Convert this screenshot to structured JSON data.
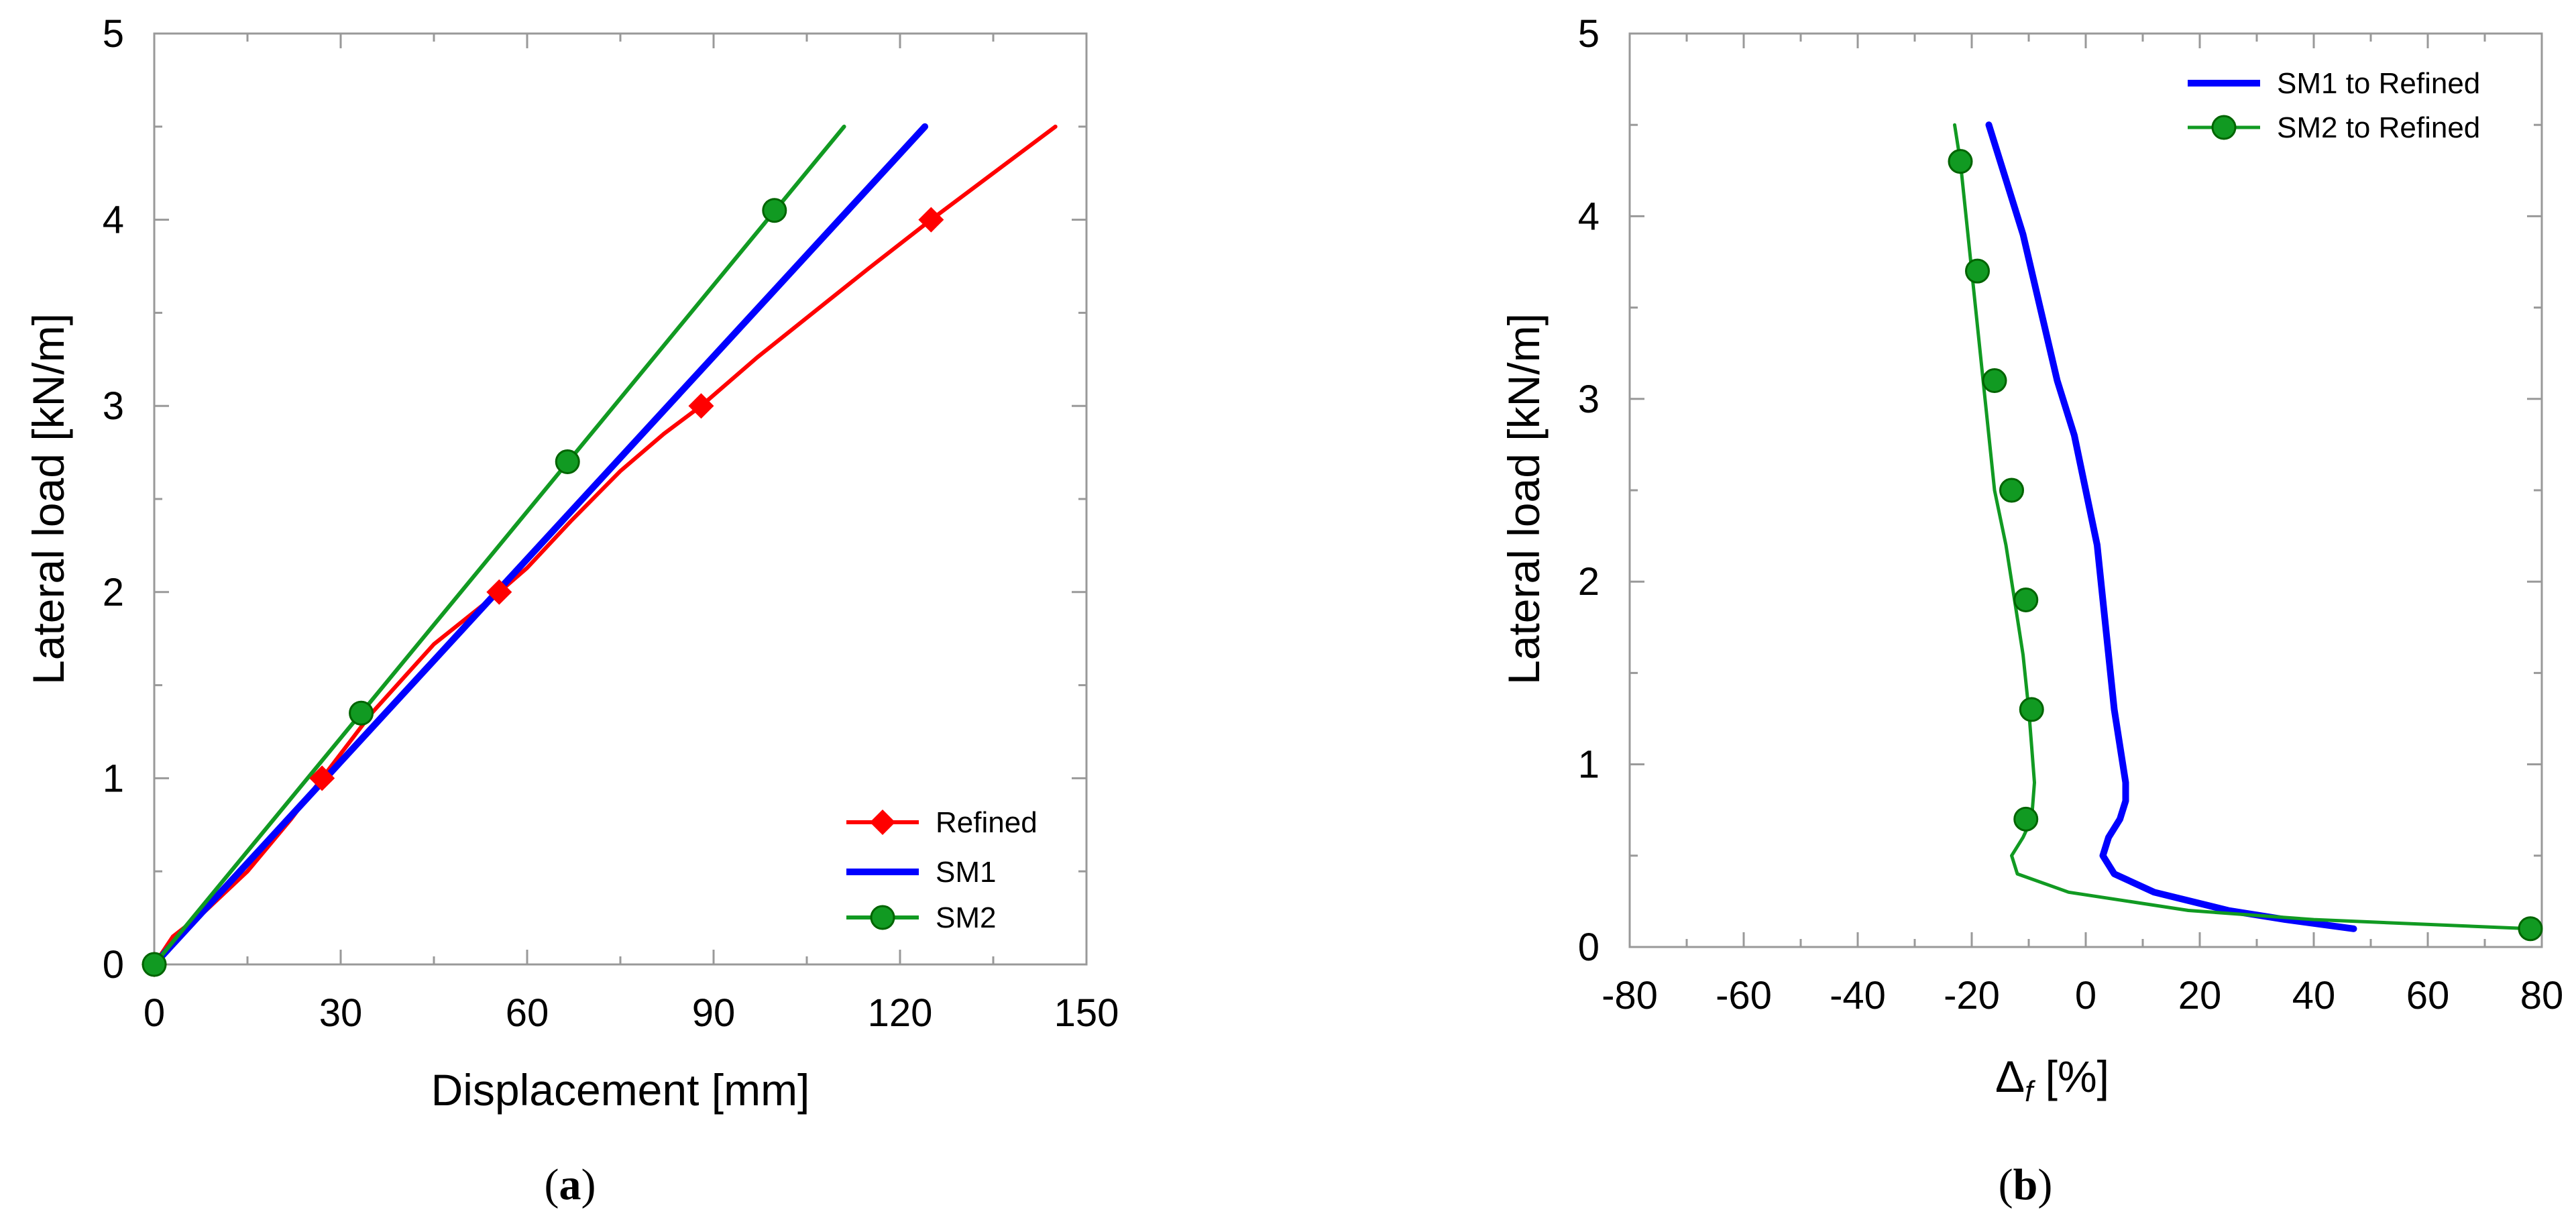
{
  "chart_data": [
    {
      "type": "line",
      "caption": "(a)",
      "caption_letter": "a",
      "xlabel": "Displacement  [mm]",
      "ylabel": "Lateral load  [kN/m]",
      "xlim": [
        0,
        150
      ],
      "ylim": [
        0,
        5
      ],
      "xticks": [
        0,
        30,
        60,
        90,
        120,
        150
      ],
      "yticks": [
        0,
        1,
        2,
        3,
        4,
        5
      ],
      "legend_position": "bottom-right",
      "series": [
        {
          "name": "Refined",
          "color": "#ff0000",
          "marker": "diamond",
          "x": [
            0,
            3,
            8,
            15,
            22,
            27,
            35,
            45,
            55.5,
            60,
            67,
            75,
            82,
            88,
            97,
            106,
            115,
            125,
            135,
            145
          ],
          "y": [
            0,
            0.15,
            0.28,
            0.5,
            0.78,
            1.0,
            1.35,
            1.72,
            2.0,
            2.13,
            2.38,
            2.65,
            2.85,
            3.0,
            3.26,
            3.5,
            3.74,
            4.0,
            4.25,
            4.5
          ],
          "marker_x": [
            0,
            27,
            55.5,
            88,
            125
          ],
          "marker_y": [
            0,
            1,
            2,
            3,
            4
          ]
        },
        {
          "name": "SM1",
          "color": "#0000ff",
          "marker": "none",
          "x": [
            0,
            124
          ],
          "y": [
            0,
            4.5
          ]
        },
        {
          "name": "SM2",
          "color": "#119a22",
          "marker": "circle",
          "x": [
            0,
            111
          ],
          "y": [
            0,
            4.5
          ],
          "marker_x": [
            0,
            33.3,
            66.5,
            99.8
          ],
          "marker_y": [
            0,
            1.35,
            2.7,
            4.05
          ]
        }
      ]
    },
    {
      "type": "line",
      "caption": "(b)",
      "caption_letter": "b",
      "xlabel": "Δ",
      "xlabel_subscript": "f",
      "xlabel_suffix": " [%]",
      "ylabel": "Lateral load  [kN/m]",
      "xlim": [
        -80,
        80
      ],
      "ylim": [
        0,
        5
      ],
      "xticks": [
        -80,
        -60,
        -40,
        -20,
        0,
        20,
        40,
        60,
        80
      ],
      "yticks": [
        0,
        1,
        2,
        3,
        4,
        5
      ],
      "legend_position": "top-right",
      "series": [
        {
          "name": "SM1 to Refined",
          "color": "#0000ff",
          "marker": "none",
          "x": [
            47,
            35,
            25,
            12,
            5,
            3,
            4,
            6,
            7,
            7,
            6,
            5,
            4,
            3,
            2,
            0,
            -2,
            -5,
            -8,
            -11,
            -14,
            -17
          ],
          "y": [
            0.1,
            0.15,
            0.2,
            0.3,
            0.4,
            0.5,
            0.6,
            0.7,
            0.8,
            0.9,
            1.1,
            1.3,
            1.6,
            1.9,
            2.2,
            2.5,
            2.8,
            3.1,
            3.5,
            3.9,
            4.2,
            4.5
          ]
        },
        {
          "name": "SM2 to Refined",
          "color": "#119a22",
          "marker": "circle",
          "x": [
            78,
            40,
            18,
            -3,
            -12,
            -13,
            -11,
            -9.5,
            -9,
            -9.5,
            -10,
            -11,
            -12.5,
            -14,
            -16,
            -18,
            -20,
            -22,
            -23
          ],
          "y": [
            0.1,
            0.15,
            0.2,
            0.3,
            0.4,
            0.5,
            0.6,
            0.7,
            0.9,
            1.1,
            1.3,
            1.6,
            1.9,
            2.2,
            2.5,
            3.1,
            3.7,
            4.3,
            4.5
          ],
          "marker_x": [
            78,
            -10.5,
            -9.5,
            -10.5,
            -13,
            -16,
            -19,
            -22
          ],
          "marker_y": [
            0.1,
            0.7,
            1.3,
            1.9,
            2.5,
            3.1,
            3.7,
            4.3
          ]
        }
      ]
    }
  ]
}
